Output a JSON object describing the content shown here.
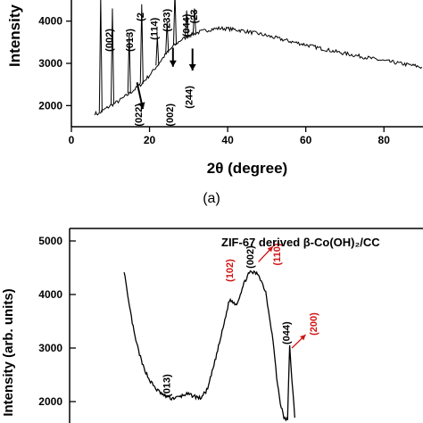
{
  "chart_data": [
    {
      "type": "line",
      "panel_label": "(a)",
      "xlabel": "2θ (degree)",
      "ylabel": "Intensity",
      "xlim": [
        0,
        90
      ],
      "ylim": [
        1500,
        4500
      ],
      "xticks": [
        0,
        20,
        40,
        60,
        80
      ],
      "yticks": [
        2000,
        3000,
        4000
      ],
      "grid": false,
      "series": [
        {
          "x": [
            6,
            7,
            8,
            10,
            12,
            14,
            16,
            18,
            20,
            22,
            24,
            26,
            28,
            30,
            32,
            34,
            36,
            38,
            40,
            44,
            48,
            52,
            56,
            60,
            64,
            68,
            72,
            76,
            80,
            84,
            88,
            90
          ],
          "values": [
            1820,
            1800,
            1880,
            2000,
            2100,
            2230,
            2370,
            2520,
            2720,
            2950,
            3200,
            3400,
            3550,
            3650,
            3720,
            3770,
            3810,
            3830,
            3820,
            3770,
            3700,
            3610,
            3520,
            3440,
            3350,
            3270,
            3200,
            3130,
            3060,
            3000,
            2940,
            2900
          ]
        }
      ],
      "peaks": [
        {
          "x": 7.5,
          "y": 4600
        },
        {
          "x": 10.5,
          "y": 4300
        },
        {
          "x": 14.8,
          "y": 3700
        },
        {
          "x": 18.0,
          "y": 4400
        },
        {
          "x": 22.0,
          "y": 3650
        },
        {
          "x": 24.5,
          "y": 4000
        },
        {
          "x": 26.5,
          "y": 4700
        },
        {
          "x": 29.5,
          "y": 4250
        },
        {
          "x": 31.5,
          "y": 4300
        }
      ],
      "annotations": [
        {
          "text": "(002)",
          "x": 10.5,
          "y": 3550
        },
        {
          "text": "(013)",
          "x": 15.8,
          "y": 3550
        },
        {
          "text": "(2",
          "x": 18.5,
          "y": 4100
        },
        {
          "text": "(114)",
          "x": 22.0,
          "y": 3820
        },
        {
          "text": "(233)",
          "x": 25.2,
          "y": 4020
        },
        {
          "text": "(044)",
          "x": 30.3,
          "y": 3900
        },
        {
          "text": "(23",
          "x": 32.2,
          "y": 4110
        },
        {
          "text": "(022)",
          "x": 18.0,
          "y": 1780
        },
        {
          "text": "(002)",
          "x": 26.0,
          "y": 1780
        },
        {
          "text": "(244)",
          "x": 31.0,
          "y": 2200
        }
      ],
      "arrows": [
        {
          "from": [
            16.8,
            2550
          ],
          "to": [
            18.3,
            1920
          ]
        },
        {
          "from": [
            26.0,
            3370
          ],
          "to": [
            26.0,
            2920
          ]
        },
        {
          "from": [
            31.0,
            3350
          ],
          "to": [
            31.0,
            2830
          ]
        }
      ]
    },
    {
      "type": "line",
      "legend_text": "ZIF-67 derived β-Co(OH)₂/CC",
      "ylabel": "Intensity (arb. units)",
      "xlim": [
        0,
        90
      ],
      "ylim": [
        1800,
        5200
      ],
      "yticks": [
        2000,
        3000,
        4000,
        5000
      ],
      "grid": false,
      "series": [
        {
          "x": [
            7.5,
            8,
            9,
            10,
            11,
            12,
            13,
            14,
            15,
            16,
            17,
            18,
            19,
            20,
            21,
            22,
            23,
            24,
            24.5,
            25,
            26,
            27,
            28,
            28.5,
            29,
            29.5,
            30,
            30.3,
            30.6,
            31
          ],
          "values": [
            4450,
            3950,
            3200,
            2700,
            2400,
            2220,
            2110,
            2060,
            2080,
            2140,
            2110,
            2060,
            2230,
            2750,
            3300,
            3900,
            3820,
            4200,
            4360,
            4420,
            4380,
            4050,
            3150,
            2450,
            1980,
            1700,
            1650,
            3050,
            2400,
            1700
          ]
        }
      ],
      "annotations": [
        {
          "text": "(013)",
          "x": 13.8,
          "y": 2300,
          "color": "#000000"
        },
        {
          "text": "(102)",
          "x": 22.5,
          "y": 4450,
          "color": "#d11414"
        },
        {
          "text": "(002)",
          "x": 25.3,
          "y": 4700,
          "color": "#000000"
        },
        {
          "text": "(110)",
          "x": 29.0,
          "y": 4750,
          "color": "#d11414"
        },
        {
          "text": "(044)",
          "x": 30.3,
          "y": 3280,
          "color": "#000000"
        },
        {
          "text": "(200)",
          "x": 34.0,
          "y": 3450,
          "color": "#d11414"
        }
      ],
      "arrows": [
        {
          "from": [
            26.0,
            4610
          ],
          "to": [
            28.0,
            4900
          ],
          "color": "#d11414"
        },
        {
          "from": [
            30.6,
            3000
          ],
          "to": [
            32.5,
            3250
          ],
          "color": "#d11414"
        }
      ]
    }
  ],
  "colors": {
    "axis": "#000000",
    "trace": "#000000",
    "highlight": "#d11414"
  }
}
